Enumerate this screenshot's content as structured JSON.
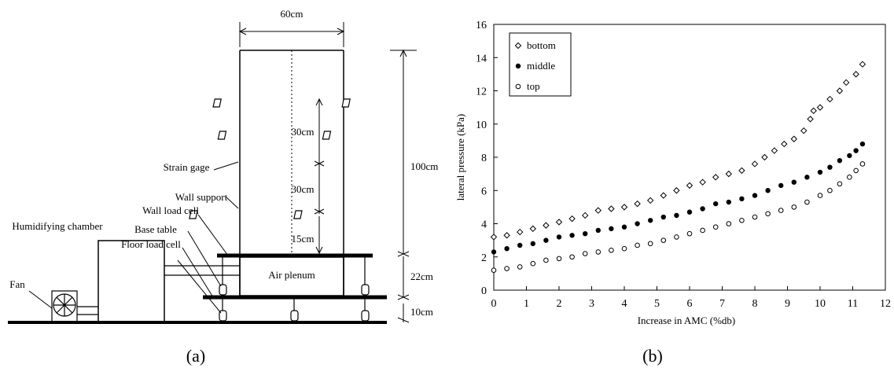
{
  "panel_a": {
    "caption": "(a)",
    "labels": {
      "width": "60cm",
      "strain_gage": "Strain gage",
      "wall_support": "Wall support",
      "wall_load_cell": "Wall load cell",
      "humidifying_chamber": "Humidifying chamber",
      "base_table": "Base table",
      "floor_load_cell": "Floor load cell",
      "fan": "Fan",
      "air_plenum": "Air plenum",
      "dim_30a": "30cm",
      "dim_30b": "30cm",
      "dim_15": "15cm",
      "dim_100": "100cm",
      "dim_22": "22cm",
      "dim_10": "10cm"
    }
  },
  "panel_b": {
    "caption": "(b)"
  },
  "chart_data": {
    "type": "scatter",
    "title": "",
    "xlabel": "Increase in AMC (%db)",
    "ylabel": "lateral pressure (kPa)",
    "xlim": [
      0,
      12
    ],
    "ylim": [
      0,
      16
    ],
    "xticks": [
      "0",
      "1",
      "2",
      "3",
      "4",
      "5",
      "6",
      "7",
      "8",
      "9",
      "10",
      "11",
      "12"
    ],
    "yticks": [
      "0",
      "2",
      "4",
      "6",
      "8",
      "10",
      "12",
      "14",
      "16"
    ],
    "grid": false,
    "legend_position": "top-left",
    "series": [
      {
        "name": "bottom",
        "marker": "diamond",
        "x": [
          0,
          0.4,
          0.8,
          1.2,
          1.6,
          2.0,
          2.4,
          2.8,
          3.2,
          3.6,
          4.0,
          4.4,
          4.8,
          5.2,
          5.6,
          6.0,
          6.4,
          6.8,
          7.2,
          7.6,
          8.0,
          8.3,
          8.6,
          8.9,
          9.2,
          9.5,
          9.7,
          9.8,
          10.0,
          10.3,
          10.6,
          10.8,
          11.1,
          11.3
        ],
        "y": [
          3.2,
          3.3,
          3.5,
          3.7,
          3.9,
          4.1,
          4.3,
          4.5,
          4.8,
          4.9,
          5.0,
          5.2,
          5.4,
          5.7,
          6.0,
          6.3,
          6.5,
          6.8,
          7.0,
          7.2,
          7.6,
          8.0,
          8.4,
          8.8,
          9.1,
          9.6,
          10.3,
          10.8,
          11.0,
          11.5,
          12.0,
          12.5,
          13.0,
          13.6
        ]
      },
      {
        "name": "middle",
        "marker": "filled-circle",
        "x": [
          0,
          0.4,
          0.8,
          1.2,
          1.6,
          2.0,
          2.4,
          2.8,
          3.2,
          3.6,
          4.0,
          4.4,
          4.8,
          5.2,
          5.6,
          6.0,
          6.4,
          6.8,
          7.2,
          7.6,
          8.0,
          8.4,
          8.8,
          9.2,
          9.6,
          10.0,
          10.3,
          10.6,
          10.9,
          11.1,
          11.3
        ],
        "y": [
          2.3,
          2.5,
          2.7,
          2.8,
          3.0,
          3.2,
          3.3,
          3.4,
          3.6,
          3.7,
          3.8,
          4.0,
          4.2,
          4.4,
          4.5,
          4.7,
          4.9,
          5.2,
          5.3,
          5.5,
          5.7,
          6.0,
          6.3,
          6.5,
          6.8,
          7.1,
          7.4,
          7.8,
          8.1,
          8.4,
          8.8
        ]
      },
      {
        "name": "top",
        "marker": "open-circle",
        "x": [
          0,
          0.4,
          0.8,
          1.2,
          1.6,
          2.0,
          2.4,
          2.8,
          3.2,
          3.6,
          4.0,
          4.4,
          4.8,
          5.2,
          5.6,
          6.0,
          6.4,
          6.8,
          7.2,
          7.6,
          8.0,
          8.4,
          8.8,
          9.2,
          9.6,
          10.0,
          10.3,
          10.6,
          10.9,
          11.1,
          11.3
        ],
        "y": [
          1.2,
          1.3,
          1.4,
          1.6,
          1.8,
          1.9,
          2.0,
          2.2,
          2.3,
          2.4,
          2.5,
          2.7,
          2.8,
          3.0,
          3.2,
          3.4,
          3.6,
          3.8,
          4.0,
          4.2,
          4.4,
          4.6,
          4.8,
          5.0,
          5.3,
          5.7,
          6.0,
          6.4,
          6.8,
          7.2,
          7.6
        ]
      }
    ]
  }
}
